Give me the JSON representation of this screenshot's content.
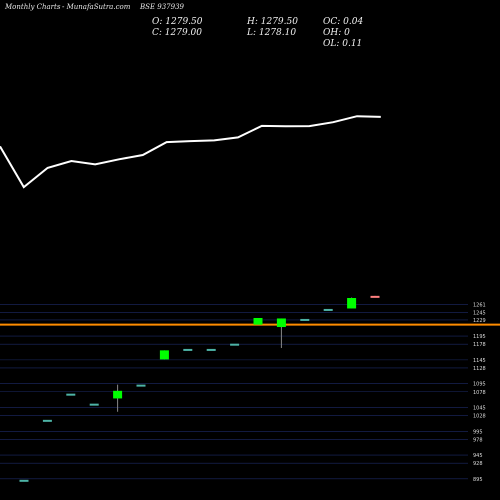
{
  "header": {
    "left": "Monthly Charts",
    "center": "- MunafaSutra.com",
    "symbol": "BSE 937939"
  },
  "ohlc": {
    "open": "O: 1279.50",
    "close": "C: 1279.00",
    "high": "H: 1279.50",
    "low": "L: 1278.10",
    "oc": "OC: 0.04",
    "oh": "OH: 0",
    "ol": "OL: 0.11"
  },
  "colors": {
    "background": "#000000",
    "up": "#00ff00",
    "down": "#ff8080",
    "neutral": "#4db3a6",
    "grid": "#1c2a66",
    "price_line": "#ff8c00",
    "trend_line": "#ffffff"
  },
  "chart_data": {
    "type": "candlestick",
    "y_ticks": [
      1261,
      1245,
      1229,
      1195,
      1178,
      1145,
      1128,
      1095,
      1078,
      1045,
      1028,
      995,
      978,
      945,
      928,
      895
    ],
    "y_range": [
      880,
      1275
    ],
    "reference_price": 1219,
    "candles": [
      {
        "open": 893,
        "high": 893,
        "low": 893,
        "close": 893,
        "color": "neutral"
      },
      {
        "open": 1019,
        "high": 1019,
        "low": 1019,
        "close": 1019,
        "color": "neutral"
      },
      {
        "open": 1074,
        "high": 1074,
        "low": 1074,
        "close": 1074,
        "color": "neutral"
      },
      {
        "open": 1053,
        "high": 1053,
        "low": 1053,
        "close": 1053,
        "color": "neutral"
      },
      {
        "open": 1064,
        "high": 1093,
        "low": 1036,
        "close": 1080,
        "color": "up"
      },
      {
        "open": 1093,
        "high": 1093,
        "low": 1093,
        "close": 1093,
        "color": "neutral"
      },
      {
        "open": 1146,
        "high": 1165,
        "low": 1146,
        "close": 1165,
        "color": "up"
      },
      {
        "open": 1168,
        "high": 1168,
        "low": 1168,
        "close": 1168,
        "color": "neutral"
      },
      {
        "open": 1168,
        "high": 1168,
        "low": 1168,
        "close": 1168,
        "color": "neutral"
      },
      {
        "open": 1179,
        "high": 1179,
        "low": 1179,
        "close": 1179,
        "color": "neutral"
      },
      {
        "open": 1219,
        "high": 1233,
        "low": 1219,
        "close": 1233,
        "color": "up"
      },
      {
        "open": 1232,
        "high": 1232,
        "low": 1170,
        "close": 1214,
        "color": "up"
      },
      {
        "open": 1231,
        "high": 1231,
        "low": 1231,
        "close": 1231,
        "color": "neutral"
      },
      {
        "open": 1252,
        "high": 1252,
        "low": 1252,
        "close": 1252,
        "color": "neutral"
      },
      {
        "open": 1253,
        "high": 1276,
        "low": 1253,
        "close": 1275,
        "color": "up"
      },
      {
        "open": 1279.5,
        "high": 1279.5,
        "low": 1278.1,
        "close": 1279,
        "color": "down"
      }
    ],
    "trend_line": [
      1150,
      960,
      1050,
      1082,
      1066,
      1090,
      1110,
      1170,
      1175,
      1178,
      1192,
      1246,
      1244,
      1245,
      1263,
      1291,
      1288
    ]
  }
}
